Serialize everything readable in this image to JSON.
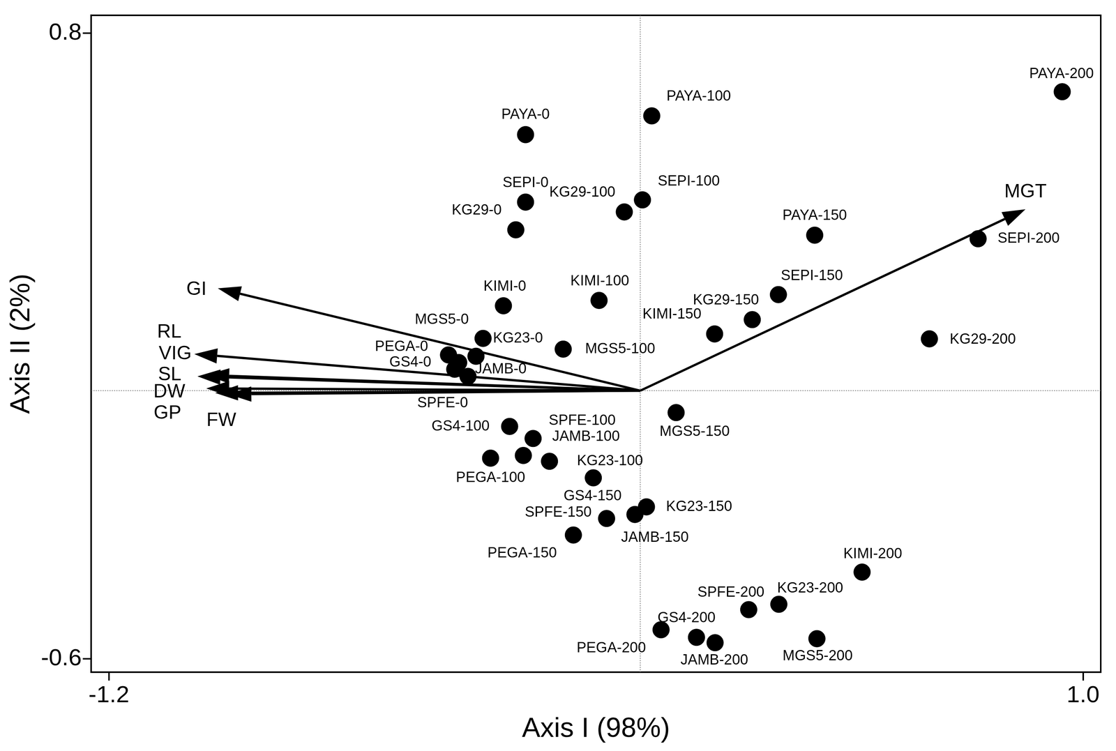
{
  "chart_data": {
    "type": "scatter",
    "x_label": "Axis I (98%)",
    "y_label": "Axis II (2%)",
    "xlim": [
      -1.24,
      1.04
    ],
    "ylim": [
      -0.63,
      0.84
    ],
    "xticks": [
      -1.2,
      {
        "value": 1.0,
        "label": "1.0"
      }
    ],
    "yticks": [
      -0.6,
      0.8
    ],
    "grid": false,
    "color": "#000000",
    "points": {
      "labels": [
        "PAYA-0",
        "PAYA-100",
        "PAYA-200",
        "SEPI-0",
        "KG29-0",
        "KG29-100",
        "SEPI-100",
        "PAYA-150",
        "SEPI-200",
        "SEPI-150",
        "KIMI-0",
        "KIMI-100",
        "KG29-150",
        "KIMI-150",
        "KG29-200",
        "KG23-0",
        "MGS5-0",
        "PEGA-0",
        "GS4-0",
        "SPFE-0",
        "JAMB-0",
        "MGS5-100",
        "MGS5-150",
        "GS4-100",
        "SPFE-100",
        "JAMB-100",
        "PEGA-100",
        "KG23-100",
        "GS4-150",
        "SPFE-150",
        "JAMB-150",
        "KG23-150",
        "PEGA-150",
        "KIMI-200",
        "KG23-200",
        "SPFE-200",
        "GS4-200",
        "PEGA-200",
        "JAMB-200",
        "MGS5-200"
      ],
      "x": [
        -0.259,
        0.026,
        0.953,
        -0.259,
        -0.281,
        -0.036,
        0.005,
        0.394,
        0.763,
        0.312,
        -0.309,
        -0.093,
        0.253,
        0.168,
        0.653,
        -0.355,
        -0.371,
        -0.433,
        -0.41,
        -0.419,
        -0.389,
        -0.174,
        0.081,
        -0.295,
        -0.242,
        -0.264,
        -0.338,
        -0.205,
        -0.106,
        -0.076,
        -0.012,
        0.014,
        -0.151,
        0.501,
        0.313,
        0.245,
        0.127,
        0.047,
        0.169,
        0.399
      ],
      "values": [
        0.573,
        0.615,
        0.669,
        0.422,
        0.36,
        0.4,
        0.427,
        0.348,
        0.34,
        0.215,
        0.19,
        0.202,
        0.159,
        0.127,
        0.116,
        0.117,
        0.077,
        0.08,
        0.063,
        0.048,
        0.032,
        0.093,
        -0.049,
        -0.08,
        -0.107,
        -0.145,
        -0.151,
        -0.158,
        -0.195,
        -0.286,
        -0.277,
        -0.26,
        -0.323,
        -0.406,
        -0.478,
        -0.49,
        -0.552,
        -0.535,
        -0.564,
        -0.555
      ]
    },
    "arrows": {
      "origin": [
        0,
        0
      ],
      "labels": [
        "GI",
        "RL",
        "VIG",
        "SL",
        "DW",
        "GP",
        "FW",
        "MGT"
      ],
      "x": [
        -0.954,
        -0.98,
        -1.007,
        -1.0,
        -0.98,
        -0.96,
        -0.93,
        0.87
      ],
      "values": [
        0.229,
        0.035,
        0.082,
        0.032,
        0.005,
        -0.005,
        -0.008,
        0.406
      ]
    }
  }
}
